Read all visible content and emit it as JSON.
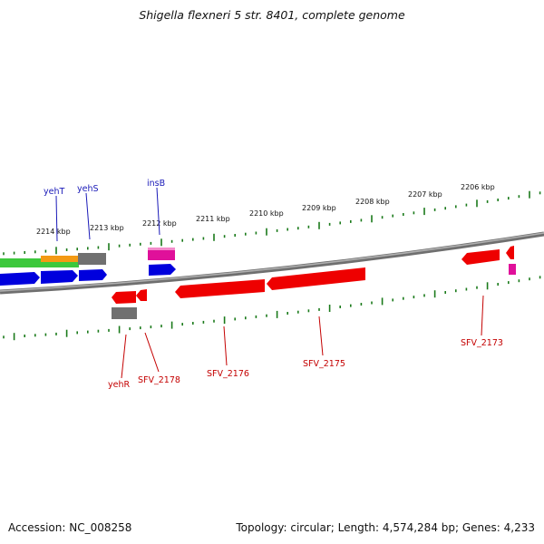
{
  "title": "Shigella flexneri 5 str. 8401, complete genome",
  "footer": {
    "accession": "Accession: NC_008258",
    "summary": "Topology: circular; Length: 4,574,284 bp; Genes: 4,233"
  },
  "scale_labels": [
    "2214 kbp",
    "2213 kbp",
    "2212 kbp",
    "2211 kbp",
    "2210 kbp",
    "2209 kbp",
    "2208 kbp",
    "2207 kbp",
    "2206 kbp"
  ],
  "gene_labels": {
    "forward": [
      "yehT",
      "yehS",
      "insB"
    ],
    "reverse": [
      "yehR",
      "SFV_2178",
      "SFV_2176",
      "SFV_2175",
      "SFV_2173"
    ]
  },
  "colors": {
    "forward_label": "#1a1ab8",
    "reverse_label": "#c40000",
    "tick": "#1a7a1a",
    "backbone": "#808080",
    "red": "#ee0000",
    "blue": "#0000dd",
    "green": "#3cc83c",
    "orange": "#f39a14",
    "grey": "#707070",
    "magenta": "#e0109a"
  }
}
